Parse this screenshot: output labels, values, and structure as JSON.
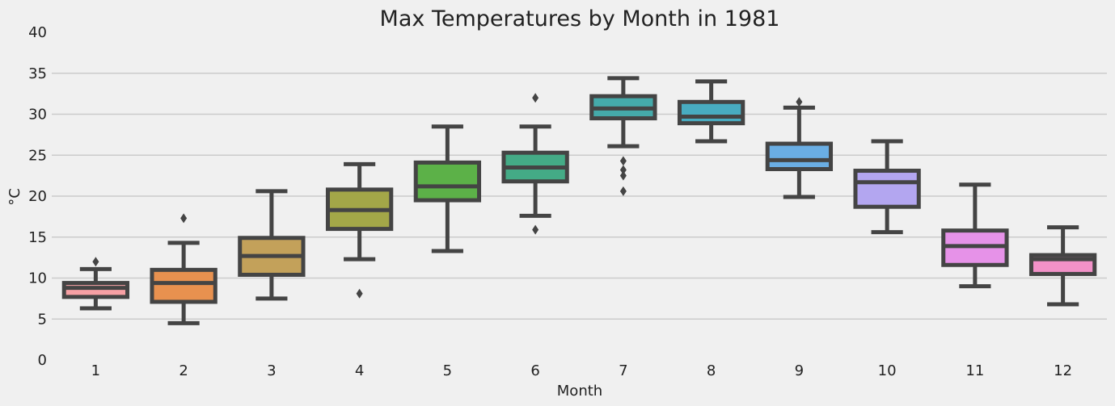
{
  "chart_data": {
    "type": "box",
    "title": "Max Temperatures by Month in 1981",
    "xlabel": "Month",
    "ylabel": "°C",
    "ylim": [
      0,
      40
    ],
    "yticks": [
      0,
      5,
      10,
      15,
      20,
      25,
      30,
      35,
      40
    ],
    "grid": "horizontal",
    "categories": [
      "1",
      "2",
      "3",
      "4",
      "5",
      "6",
      "7",
      "8",
      "9",
      "10",
      "11",
      "12"
    ],
    "colors": [
      "#f7a0a4",
      "#e8914f",
      "#c3a15a",
      "#a3a748",
      "#5cb148",
      "#44ab86",
      "#45aaaa",
      "#48acc1",
      "#6aaee4",
      "#b3a6f0",
      "#e692e8",
      "#f291c8"
    ],
    "boxes": [
      {
        "month": "1",
        "whisker_low": 6.3,
        "q1": 7.7,
        "median": 8.8,
        "q3": 9.4,
        "whisker_high": 11.1,
        "outliers": [
          12.0
        ]
      },
      {
        "month": "2",
        "whisker_low": 4.5,
        "q1": 7.1,
        "median": 9.4,
        "q3": 11.0,
        "whisker_high": 14.3,
        "outliers": [
          17.3
        ]
      },
      {
        "month": "3",
        "whisker_low": 7.5,
        "q1": 10.4,
        "median": 12.7,
        "q3": 14.9,
        "whisker_high": 20.6,
        "outliers": []
      },
      {
        "month": "4",
        "whisker_low": 12.3,
        "q1": 16.0,
        "median": 18.3,
        "q3": 20.8,
        "whisker_high": 23.9,
        "outliers": [
          8.1
        ]
      },
      {
        "month": "5",
        "whisker_low": 13.3,
        "q1": 19.5,
        "median": 21.2,
        "q3": 24.1,
        "whisker_high": 28.5,
        "outliers": []
      },
      {
        "month": "6",
        "whisker_low": 17.6,
        "q1": 21.8,
        "median": 23.5,
        "q3": 25.3,
        "whisker_high": 28.5,
        "outliers": [
          32.0,
          15.9
        ]
      },
      {
        "month": "7",
        "whisker_low": 26.1,
        "q1": 29.5,
        "median": 30.7,
        "q3": 32.2,
        "whisker_high": 34.4,
        "outliers": [
          24.3,
          23.2,
          22.5,
          20.6
        ]
      },
      {
        "month": "8",
        "whisker_low": 26.7,
        "q1": 28.9,
        "median": 29.7,
        "q3": 31.5,
        "whisker_high": 34.0,
        "outliers": []
      },
      {
        "month": "9",
        "whisker_low": 19.9,
        "q1": 23.3,
        "median": 24.4,
        "q3": 26.4,
        "whisker_high": 30.8,
        "outliers": [
          31.5
        ]
      },
      {
        "month": "10",
        "whisker_low": 15.6,
        "q1": 18.7,
        "median": 21.7,
        "q3": 23.1,
        "whisker_high": 26.7,
        "outliers": []
      },
      {
        "month": "11",
        "whisker_low": 9.0,
        "q1": 11.6,
        "median": 13.9,
        "q3": 15.8,
        "whisker_high": 21.4,
        "outliers": []
      },
      {
        "month": "12",
        "whisker_low": 6.8,
        "q1": 10.5,
        "median": 12.3,
        "q3": 12.8,
        "whisker_high": 16.2,
        "outliers": []
      }
    ]
  }
}
